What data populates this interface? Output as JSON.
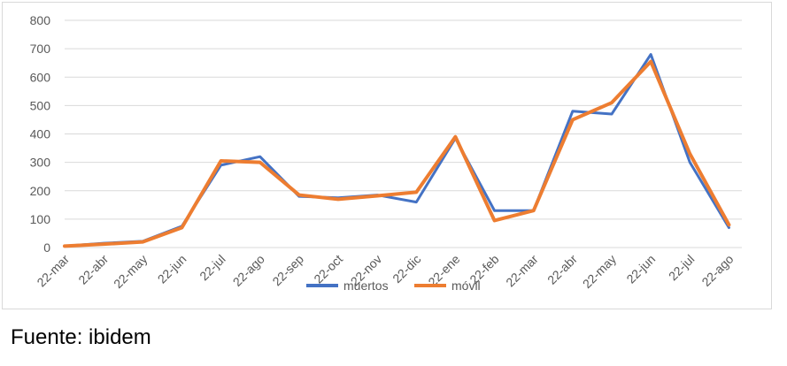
{
  "chart_data": {
    "type": "line",
    "title": "",
    "xlabel": "",
    "ylabel": "",
    "ylim": [
      0,
      800
    ],
    "yticks": [
      "0",
      "100",
      "200",
      "300",
      "400",
      "500",
      "600",
      "700",
      "800"
    ],
    "categories": [
      "22-mar",
      "22-abr",
      "22-may",
      "22-jun",
      "22-jul",
      "22-ago",
      "22-sep",
      "22-oct",
      "22-nov",
      "22-dic",
      "22-ene",
      "22-feb",
      "22-mar",
      "22-abr",
      "22-may",
      "22-jun",
      "22-jul",
      "22-ago"
    ],
    "x": [
      "2020-03-22",
      "2020-04-22",
      "2020-05-22",
      "2020-06-22",
      "2020-07-22",
      "2020-08-22",
      "2020-09-22",
      "2020-10-22",
      "2020-11-22",
      "2020-12-22",
      "2021-01-22",
      "2021-02-22",
      "2021-03-22",
      "2021-04-22",
      "2021-05-22",
      "2021-06-22",
      "2021-07-22",
      "2021-08-22"
    ],
    "grid": true,
    "legend_position": "bottom",
    "series": [
      {
        "name": "muertos",
        "color": "#4472C4",
        "values": [
          5,
          15,
          22,
          75,
          290,
          320,
          180,
          175,
          185,
          160,
          385,
          130,
          130,
          480,
          470,
          680,
          300,
          70
        ]
      },
      {
        "name": "móvil",
        "color": "#ED7D31",
        "values": [
          5,
          12,
          20,
          70,
          305,
          300,
          185,
          170,
          182,
          195,
          390,
          95,
          130,
          450,
          510,
          655,
          330,
          80
        ]
      }
    ]
  },
  "source_note": "Fuente: ibidem"
}
